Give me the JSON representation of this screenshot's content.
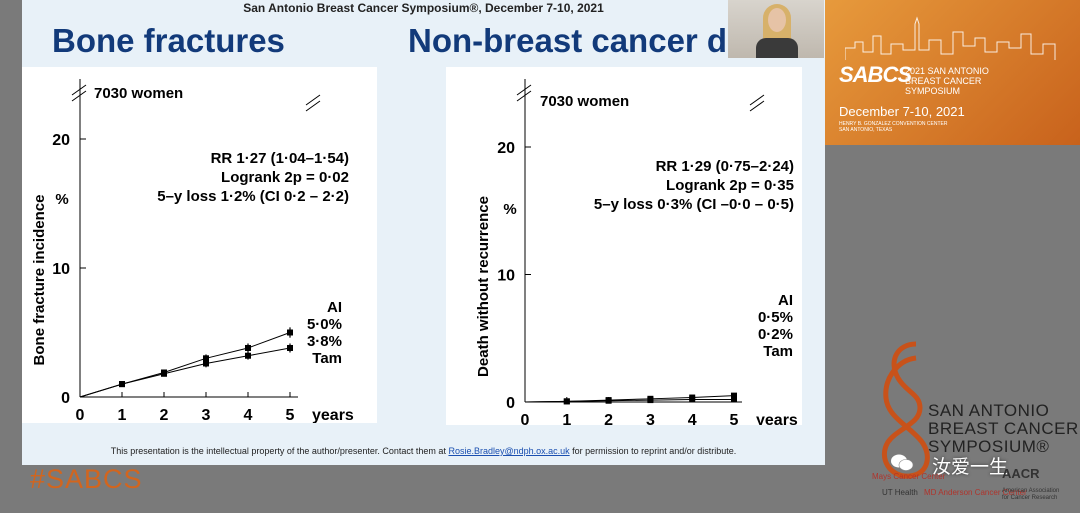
{
  "header": {
    "text": "San Antonio Breast Cancer Symposium®, December 7-10, 2021"
  },
  "titles": {
    "left": "Bone fractures",
    "right": "Non-breast cancer death"
  },
  "footer": {
    "prefix": "This presentation is the intellectual property of the author/presenter. Contact them at ",
    "email": "Rosie.Bradley@ndph.ox.ac.uk",
    "suffix": " for permission to reprint and/or distribute."
  },
  "banner": {
    "big": "SABCS",
    "small": "2021 SAN ANTONIO BREAST CANCER SYMPOSIUM",
    "dates": "December 7-10, 2021",
    "venue": "HENRY B. GONZALEZ CONVENTION CENTER SAN ANTONIO, TEXAS"
  },
  "logo": {
    "line1": "SAN ANTONIO",
    "line2": "BREAST CANCER",
    "line3": "SYMPOSIUM®"
  },
  "hashtag": "#SABCS",
  "wechat": {
    "text": "汝爱一生"
  },
  "sponsors": {
    "mays": "Mays Cancer Center",
    "ut": "UT Health",
    "mda": "MD Anderson Cancer Center",
    "aacr": "AACR",
    "aacr_full": "American Association for Cancer Research"
  },
  "chart_data": [
    {
      "type": "line",
      "name": "bone-fractures",
      "panel_label": "7030 women",
      "ylabel": "Bone fracture incidence",
      "yunit": "%",
      "xlabel": "years",
      "x": [
        0,
        1,
        2,
        3,
        4,
        5
      ],
      "xticks": [
        "0",
        "1",
        "2",
        "3",
        "4",
        "5"
      ],
      "yticks": [
        "0",
        "10",
        "20"
      ],
      "xlim": [
        0,
        5.6
      ],
      "ylim": [
        0,
        20
      ],
      "series": [
        {
          "name": "AI",
          "values": [
            0,
            1.0,
            1.9,
            3.0,
            3.8,
            5.0
          ],
          "err": [
            0,
            0.15,
            0.2,
            0.3,
            0.35,
            0.4
          ]
        },
        {
          "name": "Tam",
          "values": [
            0,
            1.0,
            1.8,
            2.6,
            3.2,
            3.8
          ],
          "err": [
            0,
            0.15,
            0.2,
            0.3,
            0.3,
            0.35
          ]
        }
      ],
      "stats": [
        "RR 1·27 (1·04–1·54)",
        "Logrank 2p = 0·02",
        "5–y loss 1·2% (CI 0·2 – 2·2)"
      ],
      "end_labels": [
        "AI",
        "5·0%",
        "3·8%",
        "Tam"
      ]
    },
    {
      "type": "line",
      "name": "non-breast-cancer-death",
      "panel_label": "7030 women",
      "ylabel": "Death without recurrence",
      "yunit": "%",
      "xlabel": "years",
      "x": [
        0,
        1,
        2,
        3,
        4,
        5
      ],
      "xticks": [
        "0",
        "1",
        "2",
        "3",
        "4",
        "5"
      ],
      "yticks": [
        "0",
        "10",
        "20"
      ],
      "xlim": [
        0,
        5.6
      ],
      "ylim": [
        0,
        20
      ],
      "series": [
        {
          "name": "AI",
          "values": [
            0,
            0.05,
            0.15,
            0.25,
            0.35,
            0.5
          ],
          "err": [
            0,
            0.05,
            0.05,
            0.1,
            0.1,
            0.15
          ]
        },
        {
          "name": "Tam",
          "values": [
            0,
            0.05,
            0.1,
            0.15,
            0.2,
            0.2
          ],
          "err": [
            0,
            0.05,
            0.05,
            0.05,
            0.1,
            0.1
          ]
        }
      ],
      "stats": [
        "RR 1·29 (0·75–2·24)",
        "Logrank 2p = 0·35",
        "5–y loss 0·3% (CI –0·0 – 0·5)"
      ],
      "end_labels": [
        "AI",
        "0·5%",
        "0·2%",
        "Tam"
      ]
    }
  ],
  "colors": {
    "title": "#123a7a",
    "hashtag": "#d2651e",
    "banner": "#e08a33"
  }
}
